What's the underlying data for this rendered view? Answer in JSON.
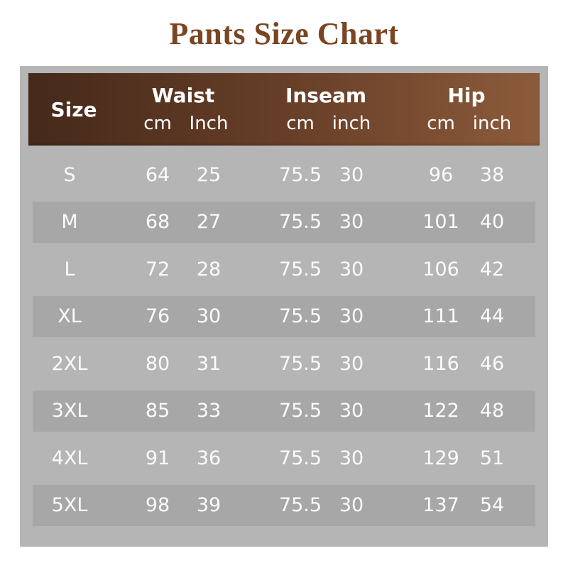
{
  "title": "Pants Size Chart",
  "colors": {
    "title_text": "#7a4522",
    "header_gradient_left": "#45291a",
    "header_gradient_right": "#8c5b3b",
    "table_frame": "#b5b5b5",
    "row_band": "#a7a7a7",
    "table_text": "#ffffff"
  },
  "header": {
    "size_label": "Size",
    "groups": [
      {
        "label": "Waist",
        "sub": [
          "cm",
          "Inch"
        ]
      },
      {
        "label": "Inseam",
        "sub": [
          "cm",
          "inch"
        ]
      },
      {
        "label": "Hip",
        "sub": [
          "cm",
          "inch"
        ]
      }
    ]
  },
  "chart_data": {
    "type": "table",
    "title": "Pants Size Chart",
    "columns": [
      "Size",
      "Waist cm",
      "Waist Inch",
      "Inseam cm",
      "Inseam inch",
      "Hip cm",
      "Hip inch"
    ],
    "rows": [
      [
        "S",
        "64",
        "25",
        "75.5",
        "30",
        "96",
        "38"
      ],
      [
        "M",
        "68",
        "27",
        "75.5",
        "30",
        "101",
        "40"
      ],
      [
        "L",
        "72",
        "28",
        "75.5",
        "30",
        "106",
        "42"
      ],
      [
        "XL",
        "76",
        "30",
        "75.5",
        "30",
        "111",
        "44"
      ],
      [
        "2XL",
        "80",
        "31",
        "75.5",
        "30",
        "116",
        "46"
      ],
      [
        "3XL",
        "85",
        "33",
        "75.5",
        "30",
        "122",
        "48"
      ],
      [
        "4XL",
        "91",
        "36",
        "75.5",
        "30",
        "129",
        "51"
      ],
      [
        "5XL",
        "98",
        "39",
        "75.5",
        "30",
        "137",
        "54"
      ]
    ]
  }
}
